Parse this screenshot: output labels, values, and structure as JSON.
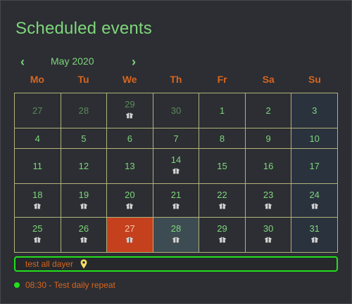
{
  "title": "Scheduled events",
  "nav": {
    "prev": "‹",
    "next": "›",
    "month": "May 2020"
  },
  "weekdays": [
    "Mo",
    "Tu",
    "We",
    "Th",
    "Fr",
    "Sa",
    "Su"
  ],
  "weeks": [
    [
      {
        "d": "27",
        "other": true
      },
      {
        "d": "28",
        "other": true
      },
      {
        "d": "29",
        "other": true,
        "ev": true
      },
      {
        "d": "30",
        "other": true
      },
      {
        "d": "1"
      },
      {
        "d": "2"
      },
      {
        "d": "3"
      }
    ],
    [
      {
        "d": "4"
      },
      {
        "d": "5"
      },
      {
        "d": "6"
      },
      {
        "d": "7"
      },
      {
        "d": "8"
      },
      {
        "d": "9"
      },
      {
        "d": "10"
      }
    ],
    [
      {
        "d": "11"
      },
      {
        "d": "12"
      },
      {
        "d": "13"
      },
      {
        "d": "14",
        "ev": true
      },
      {
        "d": "15"
      },
      {
        "d": "16"
      },
      {
        "d": "17"
      }
    ],
    [
      {
        "d": "18",
        "ev": true
      },
      {
        "d": "19",
        "ev": true
      },
      {
        "d": "20",
        "ev": true
      },
      {
        "d": "21",
        "ev": true
      },
      {
        "d": "22",
        "ev": true
      },
      {
        "d": "23",
        "ev": true
      },
      {
        "d": "24",
        "ev": true
      }
    ],
    [
      {
        "d": "25",
        "ev": true
      },
      {
        "d": "26",
        "ev": true
      },
      {
        "d": "27",
        "ev": true,
        "selected": true
      },
      {
        "d": "28",
        "ev": true,
        "hover": true
      },
      {
        "d": "29",
        "ev": true
      },
      {
        "d": "30",
        "ev": true
      },
      {
        "d": "31",
        "ev": true
      }
    ]
  ],
  "event_bar": {
    "text": "test all dayer",
    "icon": "map-pin-icon"
  },
  "list": [
    {
      "text": "08:30 - Test daily repeat"
    }
  ],
  "colors": {
    "accent": "#7fd67c",
    "header": "#d9651e",
    "selected": "#c5401d",
    "event_border": "#22e01c"
  }
}
